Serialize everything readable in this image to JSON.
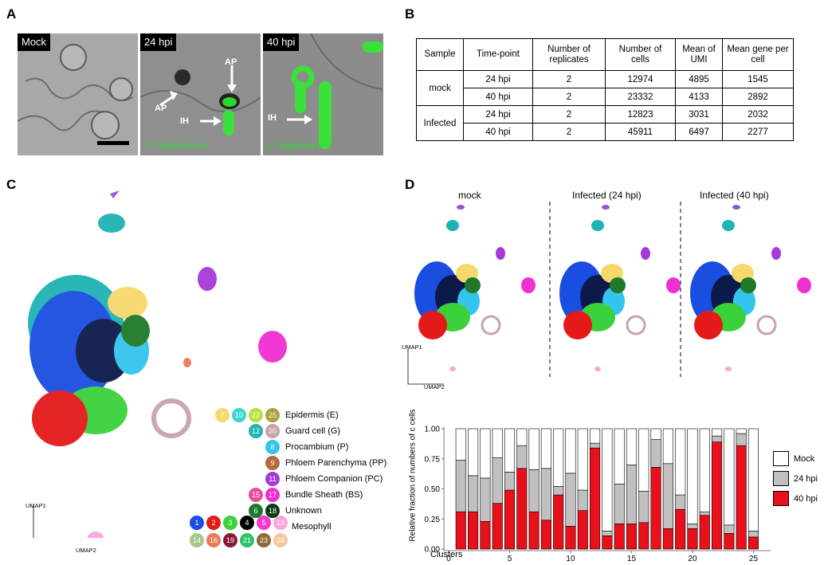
{
  "panels": {
    "a": "A",
    "b": "B",
    "c": "C",
    "d": "D"
  },
  "panel_a": {
    "images": [
      {
        "label": "Mock",
        "species": ""
      },
      {
        "label": "24 hpi",
        "species": "C. higginsianum"
      },
      {
        "label": "40 hpi",
        "species": "C. higginsianum"
      }
    ],
    "arrows": {
      "ap": "AP",
      "ih": "IH"
    }
  },
  "table": {
    "headers": [
      "Sample",
      "Time-point",
      "Number of replicates",
      "Number of cells",
      "Mean of UMI",
      "Mean gene per cell"
    ],
    "groups": [
      {
        "sample": "mock",
        "rows": [
          [
            "24 hpi",
            "2",
            "12974",
            "4895",
            "1545"
          ],
          [
            "40 hpi",
            "2",
            "23332",
            "4133",
            "2892"
          ]
        ]
      },
      {
        "sample": "Infected",
        "rows": [
          [
            "24 hpi",
            "2",
            "12823",
            "3031",
            "2032"
          ],
          [
            "40 hpi",
            "2",
            "45911",
            "6497",
            "2277"
          ]
        ]
      }
    ]
  },
  "panel_c": {
    "axis_x": "UMAP2",
    "axis_y": "UMAP1",
    "legend": [
      {
        "label": "Epidermis (E)",
        "clusters": [
          {
            "n": "7",
            "c": "#f6d86b"
          },
          {
            "n": "10",
            "c": "#3dd6d0"
          },
          {
            "n": "22",
            "c": "#b9e03a"
          },
          {
            "n": "25",
            "c": "#a9a13a"
          }
        ]
      },
      {
        "label": "Guard cell (G)",
        "clusters": [
          {
            "n": "12",
            "c": "#1fb3b3"
          },
          {
            "n": "20",
            "c": "#c9a3ab"
          }
        ]
      },
      {
        "label": "Procambium (P)",
        "clusters": [
          {
            "n": "8",
            "c": "#33c5ee"
          }
        ]
      },
      {
        "label": "Phloem Parenchyma (PP)",
        "clusters": [
          {
            "n": "9",
            "c": "#b46a3a"
          }
        ]
      },
      {
        "label": "Phloem Companion (PC)",
        "clusters": [
          {
            "n": "11",
            "c": "#a53ad8"
          }
        ]
      },
      {
        "label": "Bundle Sheath (BS)",
        "clusters": [
          {
            "n": "15",
            "c": "#e94c9a"
          },
          {
            "n": "17",
            "c": "#f02fd2"
          }
        ]
      },
      {
        "label": "Unknown",
        "clusters": [
          {
            "n": "6",
            "c": "#1e7a2a"
          },
          {
            "n": "18",
            "c": "#0a3a14"
          }
        ]
      },
      {
        "label": "Mesophyll",
        "clusters": [
          {
            "n": "1",
            "c": "#1a4ee0"
          },
          {
            "n": "2",
            "c": "#e41a1a"
          },
          {
            "n": "3",
            "c": "#3ad13a"
          },
          {
            "n": "4",
            "c": "#000000"
          },
          {
            "n": "5",
            "c": "#f03ccf"
          },
          {
            "n": "13",
            "c": "#f7a6d8"
          },
          {
            "n": "14",
            "c": "#a7c78a"
          },
          {
            "n": "16",
            "c": "#e87b5a"
          },
          {
            "n": "19",
            "c": "#8a1a3a"
          },
          {
            "n": "21",
            "c": "#2bc46a"
          },
          {
            "n": "23",
            "c": "#8a6a3a"
          },
          {
            "n": "24",
            "c": "#f6c8a0"
          }
        ]
      }
    ]
  },
  "panel_d": {
    "titles": [
      "mock",
      "Infected (24 hpi)",
      "Infected (40 hpi)"
    ],
    "axis_x": "UMAP2",
    "axis_y": "UMAP1"
  },
  "colors": {
    "mock": "#ffffff",
    "h24": "#c0c0c0",
    "h40": "#e8101a"
  },
  "chart_data": {
    "type": "bar",
    "xlabel": "Clusters",
    "ylabel": "Relative fraction of numbers of c cells",
    "ylim": [
      0,
      1
    ],
    "yticks": [
      "0.00",
      "0.25",
      "0.50",
      "0.75",
      "1.00"
    ],
    "xticks": [
      "0",
      "5",
      "10",
      "15",
      "20",
      "25"
    ],
    "categories": [
      "1",
      "2",
      "3",
      "4",
      "5",
      "6",
      "7",
      "8",
      "9",
      "10",
      "11",
      "12",
      "13",
      "14",
      "15",
      "16",
      "17",
      "18",
      "19",
      "20",
      "21",
      "22",
      "23",
      "24",
      "25"
    ],
    "series": [
      {
        "name": "40 hpi",
        "values": [
          0.31,
          0.31,
          0.23,
          0.38,
          0.49,
          0.67,
          0.31,
          0.24,
          0.45,
          0.19,
          0.32,
          0.84,
          0.11,
          0.21,
          0.21,
          0.22,
          0.68,
          0.17,
          0.33,
          0.17,
          0.28,
          0.89,
          0.13,
          0.86,
          0.1
        ]
      },
      {
        "name": "24 hpi",
        "values": [
          0.43,
          0.3,
          0.36,
          0.38,
          0.15,
          0.19,
          0.35,
          0.43,
          0.07,
          0.44,
          0.17,
          0.04,
          0.04,
          0.33,
          0.49,
          0.26,
          0.23,
          0.54,
          0.12,
          0.04,
          0.03,
          0.05,
          0.07,
          0.1,
          0.05
        ]
      },
      {
        "name": "Mock",
        "values": [
          0.26,
          0.39,
          0.41,
          0.24,
          0.36,
          0.14,
          0.34,
          0.33,
          0.48,
          0.37,
          0.51,
          0.12,
          0.85,
          0.46,
          0.3,
          0.52,
          0.09,
          0.29,
          0.55,
          0.79,
          0.69,
          0.06,
          0.8,
          0.04,
          0.85
        ]
      }
    ]
  }
}
